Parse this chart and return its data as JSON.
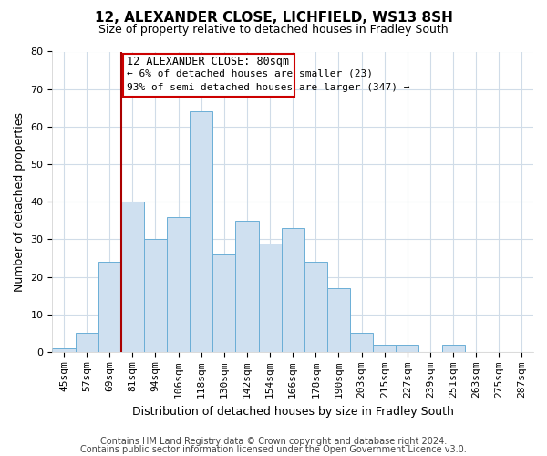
{
  "title": "12, ALEXANDER CLOSE, LICHFIELD, WS13 8SH",
  "subtitle": "Size of property relative to detached houses in Fradley South",
  "xlabel": "Distribution of detached houses by size in Fradley South",
  "ylabel": "Number of detached properties",
  "footer_lines": [
    "Contains HM Land Registry data © Crown copyright and database right 2024.",
    "Contains public sector information licensed under the Open Government Licence v3.0."
  ],
  "bin_labels": [
    "45sqm",
    "57sqm",
    "69sqm",
    "81sqm",
    "94sqm",
    "106sqm",
    "118sqm",
    "130sqm",
    "142sqm",
    "154sqm",
    "166sqm",
    "178sqm",
    "190sqm",
    "203sqm",
    "215sqm",
    "227sqm",
    "239sqm",
    "251sqm",
    "263sqm",
    "275sqm",
    "287sqm"
  ],
  "bar_values": [
    1,
    5,
    24,
    40,
    30,
    36,
    64,
    26,
    35,
    29,
    33,
    24,
    17,
    5,
    2,
    2,
    0,
    2,
    0,
    0,
    0
  ],
  "bar_color": "#cfe0f0",
  "bar_edge_color": "#6baed6",
  "ylim": [
    0,
    80
  ],
  "yticks": [
    0,
    10,
    20,
    30,
    40,
    50,
    60,
    70,
    80
  ],
  "property_line_idx": 3,
  "property_line_label": "12 ALEXANDER CLOSE: 80sqm",
  "annotation_line1": "← 6% of detached houses are smaller (23)",
  "annotation_line2": "93% of semi-detached houses are larger (347) →",
  "box_edge_color": "#cc0000",
  "line_color": "#aa0000",
  "bg_color": "#ffffff",
  "grid_color": "#d0dce8",
  "title_fontsize": 11,
  "subtitle_fontsize": 9,
  "axis_label_fontsize": 9,
  "tick_fontsize": 8,
  "annotation_fontsize": 8,
  "footer_fontsize": 7
}
